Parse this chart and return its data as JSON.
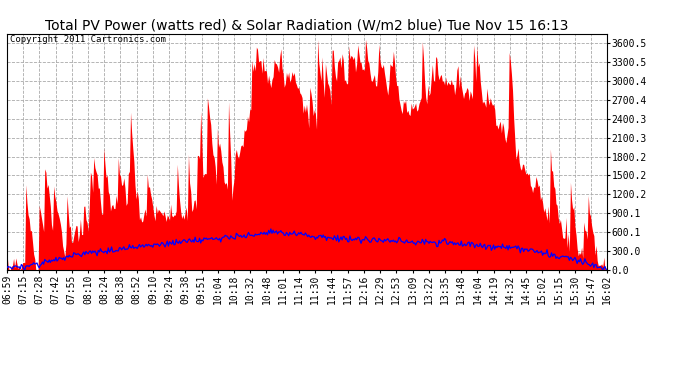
{
  "title": "Total PV Power (watts red) & Solar Radiation (W/m2 blue) Tue Nov 15 16:13",
  "copyright": "Copyright 2011 Cartronics.com",
  "yticks_right": [
    0.0,
    300.0,
    600.1,
    900.1,
    1200.2,
    1500.2,
    1800.2,
    2100.3,
    2400.3,
    2700.4,
    3000.4,
    3300.5,
    3600.5
  ],
  "ytick_labels_right": [
    "0.0",
    "300.0",
    "600.1",
    "900.1",
    "1200.2",
    "1500.2",
    "1800.2",
    "2100.3",
    "2400.3",
    "2700.4",
    "3000.4",
    "3300.5",
    "3600.5"
  ],
  "ymax": 3750,
  "ymin": 0,
  "bg_color": "#ffffff",
  "plot_bg_color": "#ffffff",
  "grid_color": "#aaaaaa",
  "pv_color": "#ff0000",
  "solar_color": "#0000ff",
  "xtick_labels": [
    "06:59",
    "07:15",
    "07:28",
    "07:42",
    "07:55",
    "08:10",
    "08:24",
    "08:38",
    "08:52",
    "09:10",
    "09:24",
    "09:38",
    "09:51",
    "10:04",
    "10:18",
    "10:32",
    "10:48",
    "11:01",
    "11:14",
    "11:30",
    "11:44",
    "11:57",
    "12:16",
    "12:29",
    "12:53",
    "13:09",
    "13:22",
    "13:35",
    "13:48",
    "14:04",
    "14:19",
    "14:32",
    "14:45",
    "15:02",
    "15:15",
    "15:30",
    "15:47",
    "16:02"
  ],
  "title_fontsize": 10,
  "tick_fontsize": 7,
  "copyright_fontsize": 6.5
}
